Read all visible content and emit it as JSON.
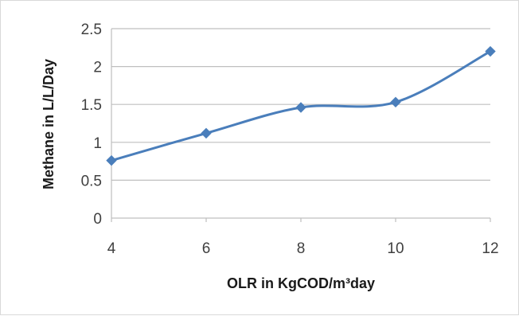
{
  "chart_data": {
    "type": "line",
    "title": "",
    "xlabel": "OLR in KgCOD/m³day",
    "ylabel": "Methane in L/L/Day",
    "x": [
      4,
      6,
      8,
      10,
      12
    ],
    "series": [
      {
        "values": [
          0.76,
          1.12,
          1.46,
          1.53,
          2.2
        ]
      }
    ],
    "xlim": [
      4,
      12
    ],
    "ylim": [
      0,
      2.5
    ],
    "x_ticks": [
      "4",
      "6",
      "8",
      "10",
      "12"
    ],
    "y_ticks": [
      "0",
      "0.5",
      "1",
      "1.5",
      "2",
      "2.5"
    ],
    "grid": "horizontal",
    "line_style": "smoothed",
    "marker": "diamond",
    "series_color": "#4a7ebb",
    "legend": "none"
  }
}
